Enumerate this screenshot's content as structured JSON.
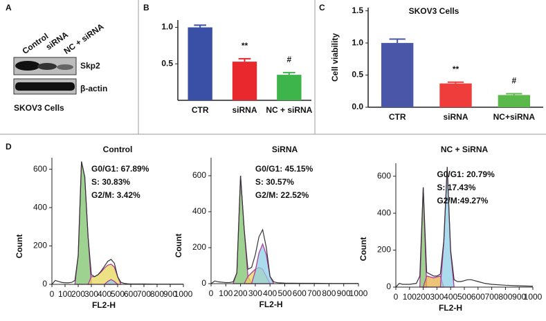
{
  "panel_a": {
    "letter": "A",
    "lanes": [
      "Control",
      "siRNA",
      "NC + siRNA"
    ],
    "bands": [
      "Skp2",
      "β-actin"
    ],
    "caption": "SKOV3 Cells"
  },
  "chart_data": [
    {
      "type": "bar",
      "panel": "B",
      "categories": [
        "CTR",
        "siRNA",
        "NC + siRNA"
      ],
      "values": [
        1.0,
        0.53,
        0.35
      ],
      "errors": [
        0.03,
        0.04,
        0.03
      ],
      "annotations": [
        null,
        "**",
        "#"
      ],
      "colors": [
        "#3a4fa6",
        "#e8282c",
        "#3db54a"
      ],
      "ylim": [
        0,
        1.1
      ],
      "yticks": [
        {
          "value": 0.5,
          "label": "0.5"
        },
        {
          "value": 1,
          "label": "1.0"
        }
      ]
    },
    {
      "type": "bar",
      "panel": "C",
      "title": "SKOV3 Cells",
      "ylabel": "Cell viability",
      "categories": [
        "CTR",
        "siRNA",
        "NC+siRNA"
      ],
      "values": [
        1.0,
        0.37,
        0.19
      ],
      "errors": [
        0.06,
        0.02,
        0.02
      ],
      "annotations": [
        null,
        "**",
        "#"
      ],
      "colors": [
        "#4a56a8",
        "#ef3d3b",
        "#5bb84a"
      ],
      "ylim": [
        0,
        1.55
      ],
      "yticks": [
        {
          "value": 0,
          "label": "0.0"
        },
        0.5,
        {
          "value": 1,
          "label": "1.0"
        },
        1.5
      ]
    },
    {
      "type": "line",
      "panel": "D",
      "title": "Control",
      "xlabel": "FL2-H",
      "ylabel": "Count",
      "annotations": [
        "G0/G1: 67.89%",
        "S: 30.83%",
        "G2/M: 3.42%"
      ],
      "xlim": [
        0,
        1000
      ],
      "xticks": [
        0,
        100,
        200,
        300,
        400,
        500,
        600,
        700,
        800,
        900,
        1000
      ],
      "ylim": [
        0,
        660
      ],
      "yticks": [
        0,
        200,
        400,
        600
      ],
      "series": [
        {
          "color": "#7dc36b",
          "x": [
            175,
            200,
            225,
            250,
            275,
            300
          ],
          "values": [
            0,
            150,
            640,
            560,
            250,
            0
          ]
        },
        {
          "color": "#e6d75a",
          "x": [
            275,
            300,
            325,
            350,
            375,
            400,
            425,
            450,
            475,
            500,
            525
          ],
          "values": [
            0,
            40,
            40,
            50,
            65,
            85,
            100,
            105,
            90,
            40,
            0
          ]
        },
        {
          "color": "#8fd0e8",
          "x": [
            400,
            425,
            450,
            475,
            500
          ],
          "values": [
            0,
            15,
            25,
            15,
            0
          ]
        },
        {
          "color": "#333333",
          "x": [
            0,
            25,
            50,
            75,
            100,
            125,
            150,
            175,
            200,
            225,
            250,
            275,
            300,
            325,
            350,
            375,
            400,
            425,
            450,
            475,
            500,
            525,
            550,
            575,
            600,
            650,
            700,
            800,
            900,
            1000
          ],
          "values": [
            0,
            20,
            15,
            10,
            8,
            8,
            10,
            20,
            150,
            640,
            560,
            250,
            50,
            40,
            50,
            70,
            95,
            120,
            130,
            110,
            40,
            10,
            5,
            3,
            2,
            2,
            2,
            1,
            1,
            1
          ]
        }
      ]
    },
    {
      "type": "line",
      "title": "SiRNA",
      "xlabel": "FL2-H",
      "ylabel": "Count",
      "annotations": [
        "G0/G1: 45.15%",
        "S: 30.57%",
        "G2/M: 22.52%"
      ],
      "xlim": [
        0,
        1000
      ],
      "xticks": [
        0,
        100,
        200,
        300,
        400,
        500,
        600,
        700,
        800,
        900,
        1000
      ],
      "ylim": [
        0,
        700
      ],
      "yticks": [
        0,
        200,
        400,
        600
      ],
      "series": [
        {
          "color": "#7dc36b",
          "x": [
            150,
            175,
            200,
            225,
            250,
            275
          ],
          "values": [
            0,
            60,
            600,
            300,
            40,
            0
          ]
        },
        {
          "color": "#e6d75a",
          "x": [
            225,
            250,
            275,
            300,
            325,
            350,
            375,
            400
          ],
          "values": [
            0,
            40,
            60,
            80,
            90,
            80,
            40,
            0
          ]
        },
        {
          "color": "#8fd0e8",
          "x": [
            275,
            300,
            325,
            350,
            375,
            400,
            425
          ],
          "values": [
            0,
            70,
            170,
            220,
            160,
            40,
            0
          ]
        },
        {
          "color": "#333333",
          "x": [
            0,
            25,
            50,
            75,
            100,
            125,
            150,
            175,
            200,
            225,
            250,
            275,
            300,
            325,
            350,
            375,
            400,
            425,
            450,
            500,
            600,
            700,
            800,
            900,
            1000
          ],
          "values": [
            0,
            15,
            10,
            8,
            6,
            6,
            10,
            60,
            600,
            300,
            80,
            90,
            160,
            260,
            300,
            200,
            40,
            10,
            5,
            3,
            2,
            2,
            1,
            1,
            1
          ]
        }
      ]
    },
    {
      "type": "line",
      "title": "NC + SiRNA",
      "xlabel": "FL2-H",
      "ylabel": "Count",
      "annotations": [
        "G0/G1: 20.79%",
        "S: 17.43%",
        "G2/M:49.27%"
      ],
      "xlim": [
        0,
        1000
      ],
      "xticks": [
        0,
        100,
        200,
        300,
        400,
        500,
        600,
        700,
        800,
        900,
        1000
      ],
      "ylim": [
        0,
        670
      ],
      "yticks": [
        0,
        200,
        400,
        600
      ],
      "series": [
        {
          "color": "#7dc36b",
          "x": [
            175,
            200,
            225
          ],
          "values": [
            0,
            540,
            0
          ]
        },
        {
          "color": "#e6b04a",
          "x": [
            200,
            225,
            250,
            275,
            300,
            325,
            350
          ],
          "values": [
            0,
            60,
            55,
            50,
            55,
            60,
            0
          ]
        },
        {
          "color": "#8fd0e8",
          "x": [
            325,
            350,
            375,
            400,
            425
          ],
          "values": [
            0,
            240,
            650,
            190,
            0
          ]
        },
        {
          "color": "#333333",
          "x": [
            0,
            25,
            50,
            100,
            150,
            175,
            200,
            225,
            250,
            275,
            300,
            325,
            350,
            375,
            400,
            425,
            450,
            475,
            500,
            525,
            550,
            575,
            600,
            650,
            700,
            800,
            900,
            1000
          ],
          "values": [
            0,
            20,
            15,
            15,
            20,
            60,
            540,
            80,
            70,
            60,
            60,
            70,
            250,
            650,
            200,
            40,
            30,
            30,
            35,
            40,
            40,
            35,
            30,
            20,
            15,
            10,
            7,
            5
          ]
        }
      ]
    }
  ]
}
